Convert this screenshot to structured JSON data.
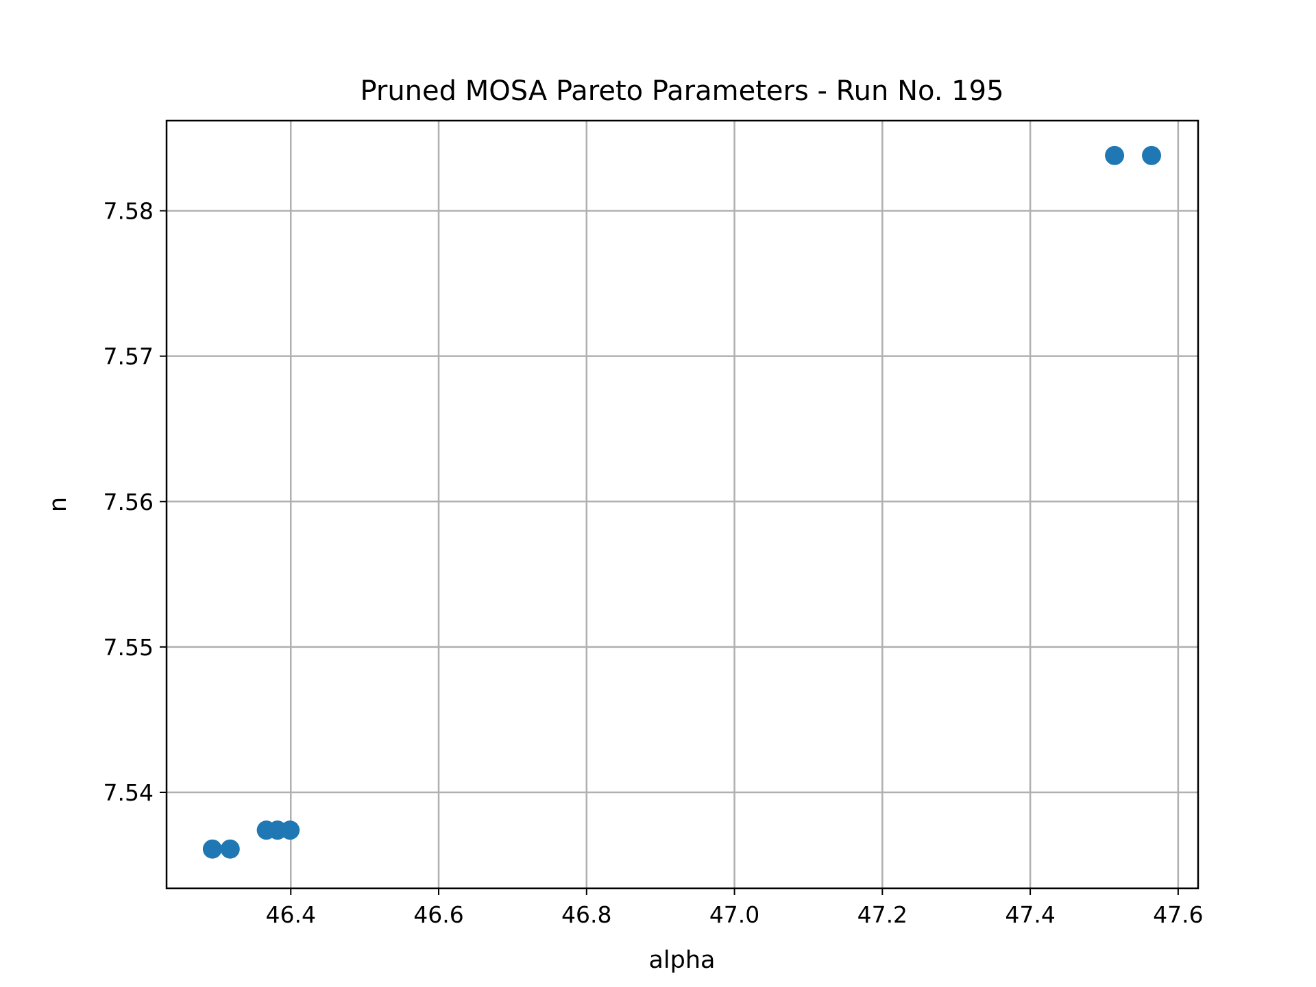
{
  "chart_data": {
    "type": "scatter",
    "title": "Pruned MOSA Pareto Parameters - Run No. 195",
    "xlabel": "alpha",
    "ylabel": "n",
    "xlim": [
      46.232,
      47.627
    ],
    "ylim": [
      7.5334,
      7.5862
    ],
    "xticks": [
      46.4,
      46.6,
      46.8,
      47.0,
      47.2,
      47.4,
      47.6
    ],
    "xtick_labels": [
      "46.4",
      "46.6",
      "46.8",
      "47.0",
      "47.2",
      "47.4",
      "47.6"
    ],
    "yticks": [
      7.54,
      7.55,
      7.56,
      7.57,
      7.58
    ],
    "ytick_labels": [
      "7.54",
      "7.55",
      "7.56",
      "7.57",
      "7.58"
    ],
    "grid": true,
    "marker_color": "#1f77b4",
    "points": [
      {
        "x": 46.294,
        "y": 7.5361
      },
      {
        "x": 46.318,
        "y": 7.5361
      },
      {
        "x": 46.367,
        "y": 7.5374
      },
      {
        "x": 46.382,
        "y": 7.5374
      },
      {
        "x": 46.399,
        "y": 7.5374
      },
      {
        "x": 47.514,
        "y": 7.5838
      },
      {
        "x": 47.564,
        "y": 7.5838
      }
    ]
  }
}
